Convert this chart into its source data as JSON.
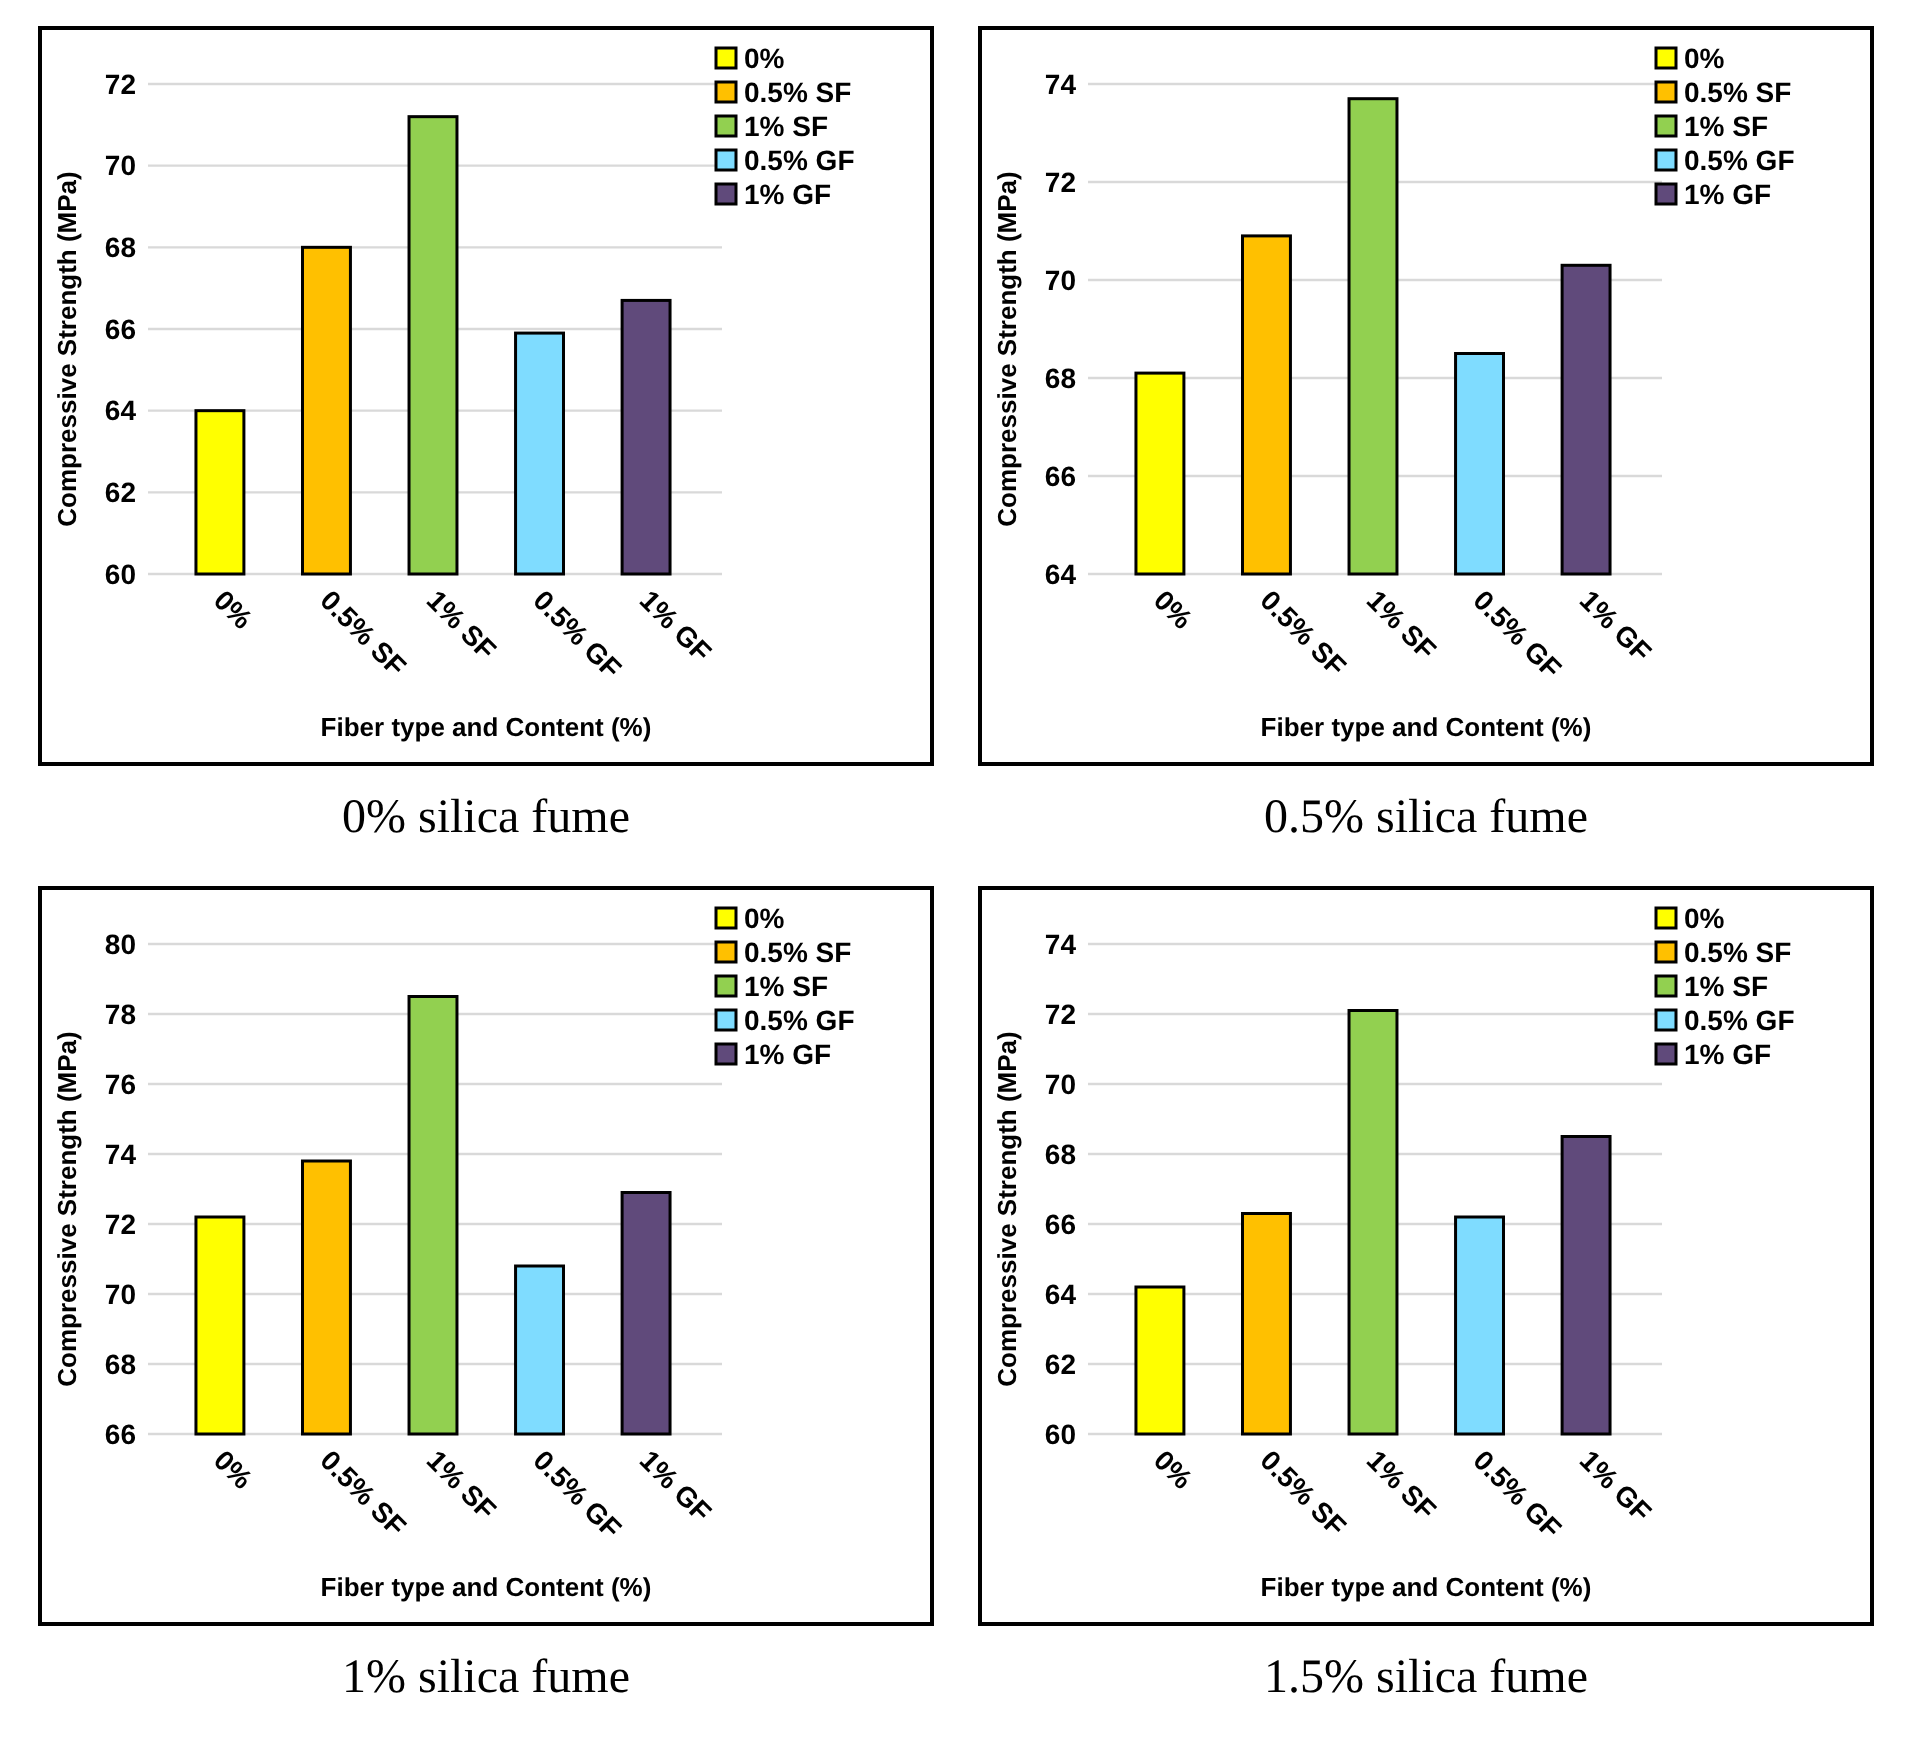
{
  "chart_data": [
    {
      "type": "bar",
      "title": "0% silica fume",
      "xlabel": "Fiber type and Content (%)",
      "ylabel": "Compressive Strength (MPa)",
      "categories": [
        "0%",
        "0.5% SF",
        "1% SF",
        "0.5% GF",
        "1% GF"
      ],
      "series": [
        {
          "name": "0%",
          "color": "#ffff00",
          "values": [
            64.0,
            null,
            null,
            null,
            null
          ]
        },
        {
          "name": "0.5% SF",
          "color": "#ffc000",
          "values": [
            null,
            68.0,
            null,
            null,
            null
          ]
        },
        {
          "name": "1% SF",
          "color": "#92d050",
          "values": [
            null,
            null,
            71.2,
            null,
            null
          ]
        },
        {
          "name": "0.5% GF",
          "color": "#7fdcff",
          "values": [
            null,
            null,
            null,
            65.9,
            null
          ]
        },
        {
          "name": "1% GF",
          "color": "#604a7b",
          "values": [
            null,
            null,
            null,
            null,
            66.7
          ]
        }
      ],
      "ylim": [
        60,
        72
      ],
      "yticks": [
        60,
        62,
        64,
        66,
        68,
        70,
        72
      ],
      "grid": "y",
      "legend": "top right"
    },
    {
      "type": "bar",
      "title": "0.5% silica fume",
      "xlabel": "Fiber type and Content (%)",
      "ylabel": "Compressive Strength (MPa)",
      "categories": [
        "0%",
        "0.5% SF",
        "1% SF",
        "0.5% GF",
        "1% GF"
      ],
      "series": [
        {
          "name": "0%",
          "color": "#ffff00",
          "values": [
            68.1,
            null,
            null,
            null,
            null
          ]
        },
        {
          "name": "0.5% SF",
          "color": "#ffc000",
          "values": [
            null,
            70.9,
            null,
            null,
            null
          ]
        },
        {
          "name": "1% SF",
          "color": "#92d050",
          "values": [
            null,
            null,
            73.7,
            null,
            null
          ]
        },
        {
          "name": "0.5% GF",
          "color": "#7fdcff",
          "values": [
            null,
            null,
            null,
            68.5,
            null
          ]
        },
        {
          "name": "1% GF",
          "color": "#604a7b",
          "values": [
            null,
            null,
            null,
            null,
            70.3
          ]
        }
      ],
      "ylim": [
        64,
        74
      ],
      "yticks": [
        64,
        66,
        68,
        70,
        72,
        74
      ],
      "grid": "y",
      "legend": "top right"
    },
    {
      "type": "bar",
      "title": "1% silica fume",
      "xlabel": "Fiber type and Content (%)",
      "ylabel": "Compressive Strength (MPa)",
      "categories": [
        "0%",
        "0.5% SF",
        "1% SF",
        "0.5% GF",
        "1% GF"
      ],
      "series": [
        {
          "name": "0%",
          "color": "#ffff00",
          "values": [
            72.2,
            null,
            null,
            null,
            null
          ]
        },
        {
          "name": "0.5% SF",
          "color": "#ffc000",
          "values": [
            null,
            73.8,
            null,
            null,
            null
          ]
        },
        {
          "name": "1% SF",
          "color": "#92d050",
          "values": [
            null,
            null,
            78.5,
            null,
            null
          ]
        },
        {
          "name": "0.5% GF",
          "color": "#7fdcff",
          "values": [
            null,
            null,
            null,
            70.8,
            null
          ]
        },
        {
          "name": "1% GF",
          "color": "#604a7b",
          "values": [
            null,
            null,
            null,
            null,
            72.9
          ]
        }
      ],
      "ylim": [
        66,
        80
      ],
      "yticks": [
        66,
        68,
        70,
        72,
        74,
        76,
        78,
        80
      ],
      "grid": "y",
      "legend": "top right"
    },
    {
      "type": "bar",
      "title": "1.5% silica fume",
      "xlabel": "Fiber type and Content (%)",
      "ylabel": "Compressive Strength (MPa)",
      "categories": [
        "0%",
        "0.5% SF",
        "1% SF",
        "0.5% GF",
        "1% GF"
      ],
      "series": [
        {
          "name": "0%",
          "color": "#ffff00",
          "values": [
            64.2,
            null,
            null,
            null,
            null
          ]
        },
        {
          "name": "0.5% SF",
          "color": "#ffc000",
          "values": [
            null,
            66.3,
            null,
            null,
            null
          ]
        },
        {
          "name": "1% SF",
          "color": "#92d050",
          "values": [
            null,
            null,
            72.1,
            null,
            null
          ]
        },
        {
          "name": "0.5% GF",
          "color": "#7fdcff",
          "values": [
            null,
            null,
            null,
            66.2,
            null
          ]
        },
        {
          "name": "1% GF",
          "color": "#604a7b",
          "values": [
            null,
            null,
            null,
            null,
            68.5
          ]
        }
      ],
      "ylim": [
        60,
        74
      ],
      "yticks": [
        60,
        62,
        64,
        66,
        68,
        70,
        72,
        74
      ],
      "grid": "y",
      "legend": "top right"
    }
  ]
}
